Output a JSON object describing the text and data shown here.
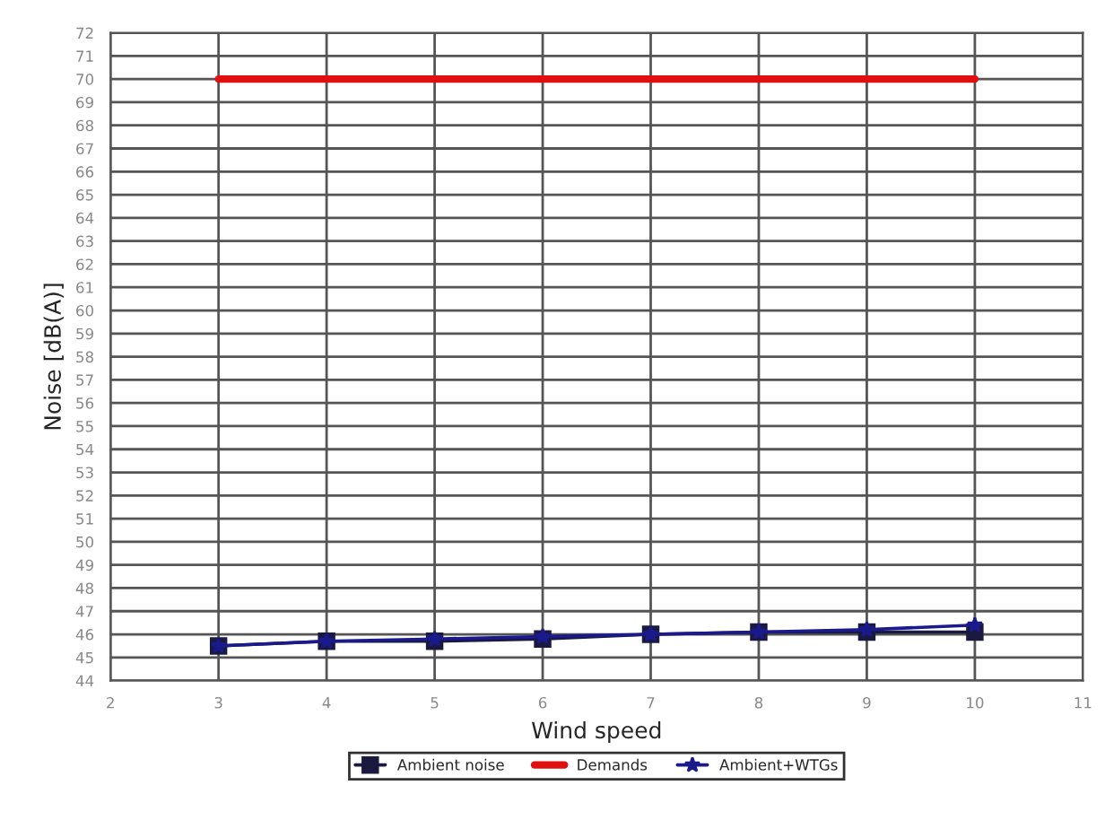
{
  "chart_data": {
    "type": "line",
    "xlabel": "Wind speed",
    "ylabel": "Noise [dB(A)]",
    "x": [
      3,
      4,
      5,
      6,
      7,
      8,
      9,
      10
    ],
    "series": [
      {
        "name": "Ambient noise",
        "color": "#1a1a40",
        "marker": "square",
        "values": [
          45.5,
          45.7,
          45.7,
          45.8,
          46.0,
          46.1,
          46.1,
          46.1
        ]
      },
      {
        "name": "Demands",
        "color": "#e01010",
        "marker": "none",
        "values": [
          70,
          70,
          70,
          70,
          70,
          70,
          70,
          70
        ]
      },
      {
        "name": "Ambient+WTGs",
        "color": "#1a1a8c",
        "marker": "star",
        "values": [
          45.5,
          45.7,
          45.8,
          45.9,
          46.0,
          46.1,
          46.2,
          46.4
        ]
      }
    ],
    "xlim": [
      2,
      11
    ],
    "xticks": [
      2,
      3,
      4,
      5,
      6,
      7,
      8,
      9,
      10,
      11
    ],
    "ylim": [
      44,
      72
    ],
    "yticks": [
      44,
      45,
      46,
      47,
      48,
      49,
      50,
      51,
      52,
      53,
      54,
      55,
      56,
      57,
      58,
      59,
      60,
      61,
      62,
      63,
      64,
      65,
      66,
      67,
      68,
      69,
      70,
      71,
      72
    ],
    "grid": true,
    "legend": "bottom",
    "line_style": "solid"
  }
}
